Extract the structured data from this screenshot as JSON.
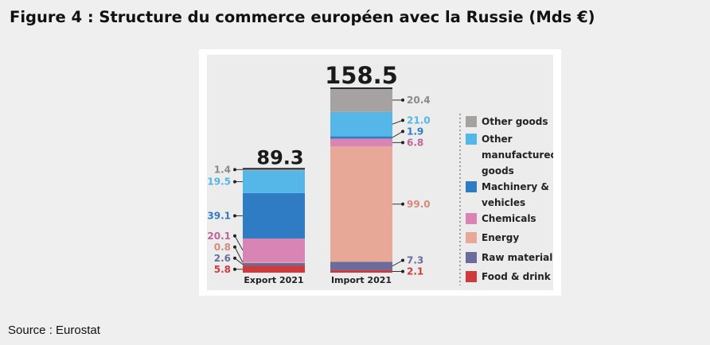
{
  "title": "Figure 4 : Structure du commerce européen avec la Russie (Mds €)",
  "source": "Source : Eurostat",
  "chart_data": {
    "type": "bar",
    "stacked": true,
    "categories": [
      "Export 2021",
      "Import 2021"
    ],
    "totals": [
      "89.3",
      "158.5"
    ],
    "series": [
      {
        "name": "Food & drink",
        "color": "#d03a3a",
        "values": [
          5.8,
          2.1
        ],
        "labels": [
          "5.8",
          "2.1"
        ]
      },
      {
        "name": "Raw materials",
        "color": "#6c6b9a",
        "values": [
          2.6,
          7.3
        ],
        "labels": [
          "2.6",
          "7.3"
        ]
      },
      {
        "name": "Energy",
        "color": "#e8a897",
        "values": [
          0.8,
          99.0
        ],
        "labels": [
          "0.8",
          "99.0"
        ]
      },
      {
        "name": "Chemicals",
        "color": "#d884b4",
        "values": [
          20.1,
          6.8
        ],
        "labels": [
          "20.1",
          "6.8"
        ]
      },
      {
        "name": "Machinery & vehicles",
        "color": "#2f7cc4",
        "values": [
          39.1,
          1.9
        ],
        "labels": [
          "39.1",
          "1.9"
        ]
      },
      {
        "name": "Other manufactured goods",
        "color": "#55b6e8",
        "values": [
          19.5,
          21.0
        ],
        "labels": [
          "19.5",
          "21.0"
        ]
      },
      {
        "name": "Other goods",
        "color": "#a6a2a2",
        "values": [
          1.4,
          20.4
        ],
        "labels": [
          "1.4",
          "20.4"
        ]
      }
    ],
    "legend_lines": [
      [
        "Other goods"
      ],
      [
        "Other",
        "manufactured",
        "goods"
      ],
      [
        "Machinery &",
        "vehicles"
      ],
      [
        "Chemicals"
      ],
      [
        "Energy"
      ],
      [
        "Raw materials"
      ],
      [
        "Food & drink"
      ]
    ],
    "legend_order": [
      6,
      5,
      4,
      3,
      2,
      1,
      0
    ],
    "legend_placement": "right"
  }
}
